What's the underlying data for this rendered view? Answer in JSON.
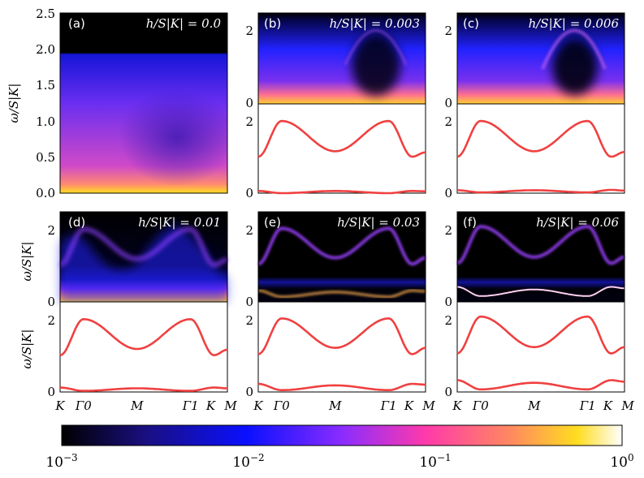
{
  "chart_data": {
    "type": "heatmap",
    "description_axes": {
      "ylabel": "ω/S|K|",
      "xticks": [
        "K",
        "Γ0",
        "M",
        "Γ1",
        "K",
        "M"
      ],
      "colorbar": {
        "scale": "log",
        "ticks": [
          "10^-3",
          "10^-2",
          "10^-1",
          "10^0"
        ],
        "range": [
          0.001,
          1
        ]
      }
    },
    "panels": [
      {
        "label": "(a)",
        "h_text": "h/S|K| = 0.0",
        "h": 0.0,
        "yticks_heat": [
          "0.0",
          "0.5",
          "1.0",
          "1.5",
          "2.0",
          "2.5"
        ],
        "heat_ylim": [
          0,
          2.5
        ],
        "upper": [],
        "lower": []
      },
      {
        "label": "(b)",
        "h_text": "h/S|K| = 0.003",
        "h": 0.003,
        "yticks_heat": [
          "0",
          "2"
        ],
        "heat_ylim": [
          0,
          2.45
        ],
        "yticks_disp": [
          "0",
          "2"
        ],
        "disp_ylim": [
          0,
          2.45
        ],
        "upper": [
          1.0,
          1.98,
          1.15,
          1.98,
          1.0,
          1.12
        ],
        "lower": [
          0.06,
          0.0,
          0.06,
          0.0,
          0.06,
          0.05
        ]
      },
      {
        "label": "(c)",
        "h_text": "h/S|K| = 0.006",
        "h": 0.006,
        "yticks_heat": [
          "0",
          "2"
        ],
        "heat_ylim": [
          0,
          2.45
        ],
        "yticks_disp": [
          "0",
          "2"
        ],
        "disp_ylim": [
          0,
          2.45
        ],
        "upper": [
          1.0,
          1.98,
          1.15,
          1.98,
          1.0,
          1.13
        ],
        "lower": [
          0.08,
          0.02,
          0.08,
          0.02,
          0.09,
          0.07
        ]
      },
      {
        "label": "(d)",
        "h_text": "h/S|K| = 0.01",
        "h": 0.01,
        "yticks_heat": [
          "0",
          "2"
        ],
        "heat_ylim": [
          0,
          2.45
        ],
        "yticks_disp": [
          "0",
          "2"
        ],
        "disp_ylim": [
          0,
          2.45
        ],
        "upper": [
          1.0,
          1.98,
          1.17,
          1.98,
          1.0,
          1.15
        ],
        "lower": [
          0.12,
          0.03,
          0.1,
          0.03,
          0.12,
          0.1
        ]
      },
      {
        "label": "(e)",
        "h_text": "h/S|K| = 0.03",
        "h": 0.03,
        "yticks_heat": [
          "0",
          "2"
        ],
        "heat_ylim": [
          0,
          2.45
        ],
        "yticks_disp": [
          "0",
          "2"
        ],
        "disp_ylim": [
          0,
          2.45
        ],
        "upper": [
          1.03,
          2.0,
          1.2,
          2.0,
          1.03,
          1.2
        ],
        "lower": [
          0.22,
          0.05,
          0.18,
          0.05,
          0.22,
          0.2
        ]
      },
      {
        "label": "(f)",
        "h_text": "h/S|K| = 0.06",
        "h": 0.06,
        "yticks_heat": [
          "0",
          "2"
        ],
        "heat_ylim": [
          0,
          2.45
        ],
        "yticks_disp": [
          "0",
          "2"
        ],
        "disp_ylim": [
          0,
          2.45
        ],
        "upper": [
          1.05,
          2.05,
          1.22,
          2.05,
          1.05,
          1.22
        ],
        "lower": [
          0.32,
          0.07,
          0.25,
          0.07,
          0.32,
          0.28
        ]
      }
    ],
    "colors": {
      "dispersion": "#f04040",
      "background_low": "#000000"
    }
  }
}
